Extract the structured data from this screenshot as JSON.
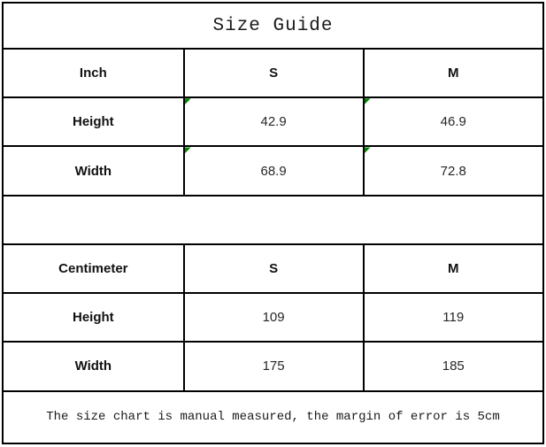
{
  "title": "Size Guide",
  "inch_section": {
    "unit_header": "Inch",
    "col_s": "S",
    "col_m": "M",
    "height_row": {
      "label": "Height",
      "s": "42.9",
      "m": "46.9"
    },
    "width_row": {
      "label": "Width",
      "s": "68.9",
      "m": "72.8"
    }
  },
  "cm_section": {
    "unit_header": "Centimeter",
    "col_s": "S",
    "col_m": "M",
    "height_row": {
      "label": "Height",
      "s": "109",
      "m": "119"
    },
    "width_row": {
      "label": "Width",
      "s": "175",
      "m": "185"
    }
  },
  "footnote": "The size chart is manual measured, the margin of error is 5cm",
  "icons": {
    "corner_indicator": "excel-green-corner-triangle"
  },
  "colors": {
    "background": "#ffffff",
    "border": "#000000",
    "text": "#1a1a1a",
    "indicator_green": "#008000"
  },
  "chart_data": {
    "type": "table",
    "title": "Size Guide",
    "sections": [
      {
        "unit": "Inch",
        "columns": [
          "S",
          "M"
        ],
        "rows": [
          {
            "measure": "Height",
            "values": [
              42.9,
              46.9
            ]
          },
          {
            "measure": "Width",
            "values": [
              68.9,
              72.8
            ]
          }
        ]
      },
      {
        "unit": "Centimeter",
        "columns": [
          "S",
          "M"
        ],
        "rows": [
          {
            "measure": "Height",
            "values": [
              109,
              119
            ]
          },
          {
            "measure": "Width",
            "values": [
              175,
              185
            ]
          }
        ]
      }
    ],
    "note": "The size chart is manual measured, the margin of error is 5cm"
  }
}
